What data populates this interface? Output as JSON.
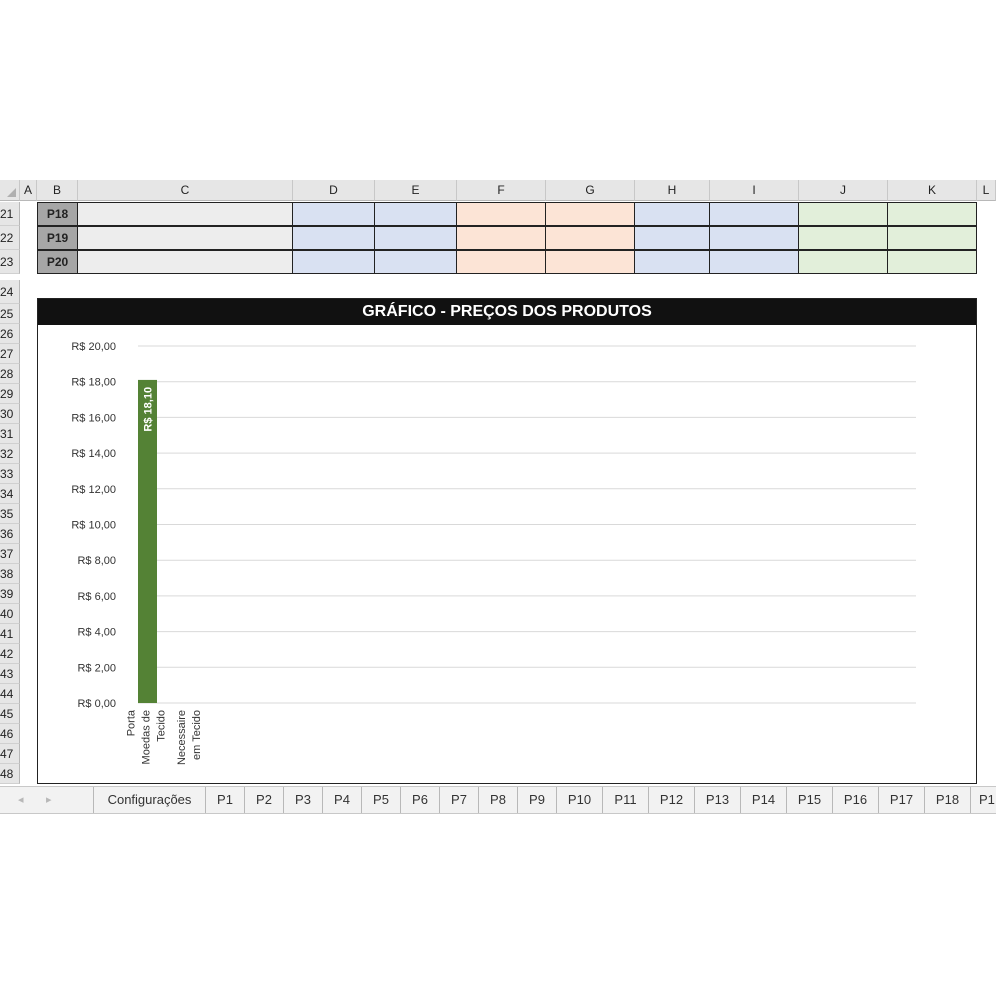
{
  "columns": [
    "A",
    "B",
    "C",
    "D",
    "E",
    "F",
    "G",
    "H",
    "I",
    "J",
    "K",
    "L"
  ],
  "rows": [
    {
      "number": "21",
      "product": "P18"
    },
    {
      "number": "22",
      "product": "P19"
    },
    {
      "number": "23",
      "product": "P20"
    }
  ],
  "empty_row_numbers": [
    "24",
    "25",
    "26",
    "27",
    "28",
    "29",
    "30",
    "31",
    "32",
    "33",
    "34",
    "35",
    "36",
    "37",
    "38",
    "39",
    "40",
    "41",
    "42",
    "43",
    "44",
    "45",
    "46",
    "47",
    "48"
  ],
  "colors": {
    "bar": "#548235",
    "blue_cells": "#d9e1f2",
    "orange_cells": "#fce4d6",
    "green_cells": "#e2efda",
    "title_bg": "#111111"
  },
  "chart_data": {
    "type": "bar",
    "title": "GRÁFICO - PREÇOS DOS PRODUTOS",
    "categories": [
      "Porta Moedas de Tecido",
      "Necessaire em Tecido"
    ],
    "category_lines": [
      [
        "Porta",
        "Moedas de",
        "Tecido"
      ],
      [
        "Necessaire",
        "em Tecido"
      ]
    ],
    "values": [
      18.1,
      0
    ],
    "data_labels": [
      "R$ 18,10",
      ""
    ],
    "ylim": [
      0,
      20
    ],
    "yticks": [
      0,
      2,
      4,
      6,
      8,
      10,
      12,
      14,
      16,
      18,
      20
    ],
    "ytick_labels": [
      "R$ 0,00",
      "R$ 2,00",
      "R$ 4,00",
      "R$ 6,00",
      "R$ 8,00",
      "R$ 10,00",
      "R$ 12,00",
      "R$ 14,00",
      "R$ 16,00",
      "R$ 18,00",
      "R$ 20,00"
    ],
    "grid": true,
    "legend": "none"
  },
  "tabs": {
    "nav_prev": "◂",
    "nav_next": "▸",
    "items": [
      "Configurações",
      "P1",
      "P2",
      "P3",
      "P4",
      "P5",
      "P6",
      "P7",
      "P8",
      "P9",
      "P10",
      "P11",
      "P12",
      "P13",
      "P14",
      "P15",
      "P16",
      "P17",
      "P18",
      "P1"
    ]
  }
}
